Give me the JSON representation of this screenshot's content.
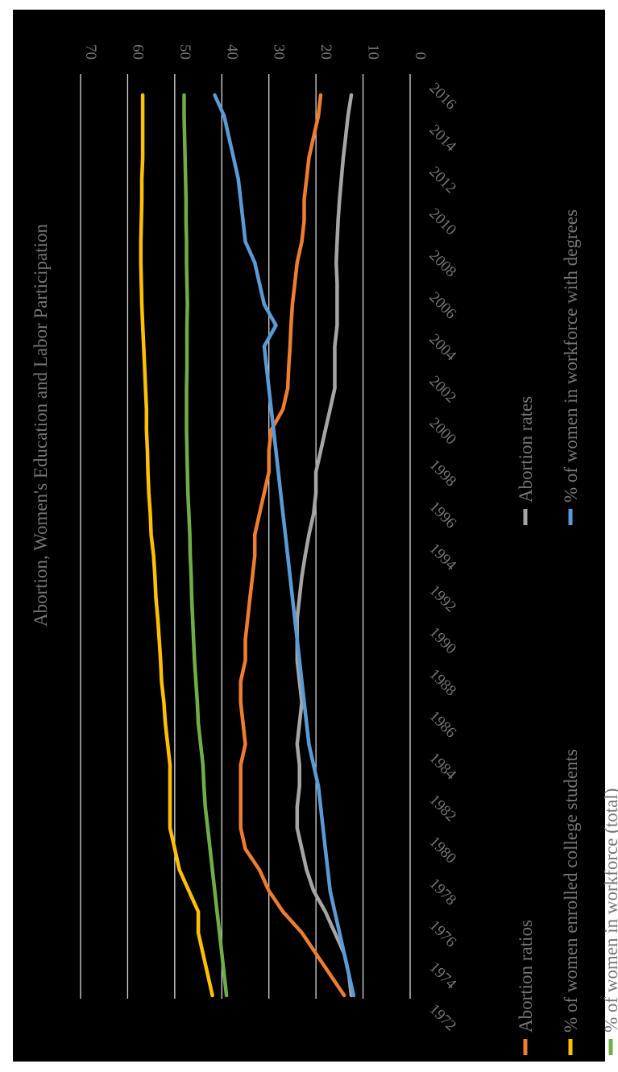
{
  "chart_data": {
    "type": "line",
    "orientation": "rotated-90-clockwise",
    "title": "Abortion, Women's Education and Labor Participation",
    "xlabel": "",
    "ylabel": "",
    "ylim": [
      0,
      70
    ],
    "y_ticks": [
      "0",
      "10",
      "20",
      "30",
      "40",
      "50",
      "60",
      "70"
    ],
    "x_ticks": [
      "1972",
      "1974",
      "1976",
      "1978",
      "1980",
      "1982",
      "1984",
      "1986",
      "1988",
      "1990",
      "1992",
      "1994",
      "1996",
      "1998",
      "2000",
      "2002",
      "2004",
      "2006",
      "2008",
      "2010",
      "2012",
      "2014",
      "2016"
    ],
    "xlim": [
      1972,
      2016
    ],
    "grid": true,
    "legend_position": "bottom",
    "background": "#000000",
    "text_color": "#767676",
    "grid_color": "#d9d9d9",
    "series": [
      {
        "name": "Abortion ratios",
        "color": "#ed7d31",
        "x": [
          1972,
          1973,
          1974,
          1975,
          1976,
          1977,
          1978,
          1979,
          1980,
          1981,
          1982,
          1983,
          1984,
          1985,
          1986,
          1987,
          1988,
          1989,
          1990,
          1991,
          1992,
          1993,
          1994,
          1995,
          1996,
          1997,
          1998,
          1999,
          2000,
          2001,
          2002,
          2003,
          2004,
          2005,
          2006,
          2007,
          2008,
          2009,
          2010,
          2011,
          2012,
          2013,
          2014,
          2015
        ],
        "y": [
          14,
          17,
          20,
          23,
          27,
          30,
          32,
          35,
          36,
          36,
          36,
          36,
          35,
          35.5,
          36,
          36,
          35,
          35,
          34.5,
          34,
          33.5,
          33,
          33,
          32,
          31,
          30,
          30,
          29.5,
          27,
          26,
          25.8,
          25.5,
          25.3,
          25,
          24.5,
          24,
          23,
          22.5,
          22.5,
          22,
          21.5,
          20.5,
          19.5,
          19
        ]
      },
      {
        "name": "% of women enrolled college students",
        "color": "#ffc000",
        "x": [
          1972,
          1973,
          1974,
          1975,
          1976,
          1977,
          1978,
          1979,
          1980,
          1981,
          1982,
          1983,
          1984,
          1985,
          1986,
          1987,
          1988,
          1989,
          1990,
          1991,
          1992,
          1993,
          1994,
          1995,
          1996,
          1997,
          1998,
          1999,
          2000,
          2001,
          2002,
          2003,
          2004,
          2005,
          2006,
          2007,
          2008,
          2009,
          2010,
          2011,
          2012,
          2013,
          2014,
          2015
        ],
        "y": [
          42,
          43,
          44,
          45,
          45,
          47,
          49,
          50,
          51,
          51,
          51,
          51,
          51.5,
          52,
          52.3,
          52.8,
          53,
          53.3,
          53.6,
          54,
          54.2,
          54.5,
          55,
          55.2,
          55.5,
          55.7,
          55.8,
          56,
          56,
          56.2,
          56.4,
          56.6,
          56.8,
          57,
          57.1,
          57.2,
          57.2,
          57.1,
          57,
          57,
          56.8,
          56.8,
          56.8,
          56.8
        ]
      },
      {
        "name": "% of women in workforce (total)",
        "color": "#70ad47",
        "x": [
          1972,
          1973,
          1974,
          1975,
          1976,
          1977,
          1978,
          1979,
          1980,
          1981,
          1982,
          1983,
          1984,
          1985,
          1986,
          1987,
          1988,
          1989,
          1990,
          1991,
          1992,
          1993,
          1994,
          1995,
          1996,
          1997,
          1998,
          1999,
          2000,
          2001,
          2002,
          2003,
          2004,
          2005,
          2006,
          2007,
          2008,
          2009,
          2010,
          2011,
          2012,
          2013,
          2014,
          2015
        ],
        "y": [
          39,
          39.5,
          40,
          40.5,
          41,
          41.5,
          42,
          42.5,
          43,
          43.5,
          43.8,
          44,
          44.5,
          45,
          45.2,
          45.5,
          45.8,
          46,
          46.2,
          46.4,
          46.5,
          46.7,
          46.8,
          47,
          47.2,
          47.3,
          47.4,
          47.5,
          47.5,
          47.5,
          47.4,
          47.4,
          47.4,
          47.3,
          47.4,
          47.5,
          47.5,
          47.6,
          47.6,
          47.7,
          47.8,
          47.9,
          48,
          48
        ]
      },
      {
        "name": "Abortion rates",
        "color": "#a5a5a5",
        "x": [
          1972,
          1973,
          1974,
          1975,
          1976,
          1977,
          1978,
          1979,
          1980,
          1981,
          1982,
          1983,
          1984,
          1985,
          1986,
          1987,
          1988,
          1989,
          1990,
          1991,
          1992,
          1993,
          1994,
          1995,
          1996,
          1997,
          1998,
          1999,
          2000,
          2001,
          2002,
          2003,
          2004,
          2005,
          2006,
          2007,
          2008,
          2009,
          2010,
          2011,
          2012,
          2013,
          2014,
          2015
        ],
        "y": [
          12.5,
          13,
          14,
          16,
          18,
          20.5,
          22,
          23,
          24,
          24,
          23.5,
          23.5,
          24,
          23.5,
          23,
          23.5,
          24,
          24,
          24,
          23.5,
          23,
          22.3,
          21.5,
          20.5,
          20,
          20,
          19,
          18,
          17,
          16,
          16,
          16,
          15.5,
          15.5,
          15.5,
          15.7,
          15.5,
          15.3,
          15,
          14.6,
          14.2,
          13.7,
          13.2,
          12.5
        ]
      },
      {
        "name": "% of women in workforce with degrees",
        "color": "#5b9bd5",
        "x": [
          1972,
          1973,
          1974,
          1975,
          1976,
          1977,
          1978,
          1979,
          1980,
          1981,
          1982,
          1983,
          1984,
          1985,
          1986,
          1987,
          1988,
          1989,
          1990,
          1991,
          1992,
          1993,
          1994,
          1995,
          1996,
          1997,
          1998,
          1999,
          2000,
          2001,
          2002,
          2003,
          2004,
          2005,
          2006,
          2007,
          2008,
          2009,
          2010,
          2011,
          2012,
          2013,
          2014,
          2015
        ],
        "y": [
          12,
          13,
          14,
          15,
          16,
          17,
          17.5,
          18,
          18.5,
          19,
          19.5,
          20.5,
          21.5,
          22,
          22.5,
          23,
          23.5,
          24,
          24.5,
          25,
          25.5,
          26,
          26.5,
          27,
          27.5,
          28,
          28.5,
          29,
          29.5,
          30,
          30.5,
          31,
          28.5,
          31,
          32,
          33,
          35,
          35.5,
          36,
          36.5,
          37.5,
          38.5,
          39.5,
          41.5
        ]
      }
    ]
  }
}
